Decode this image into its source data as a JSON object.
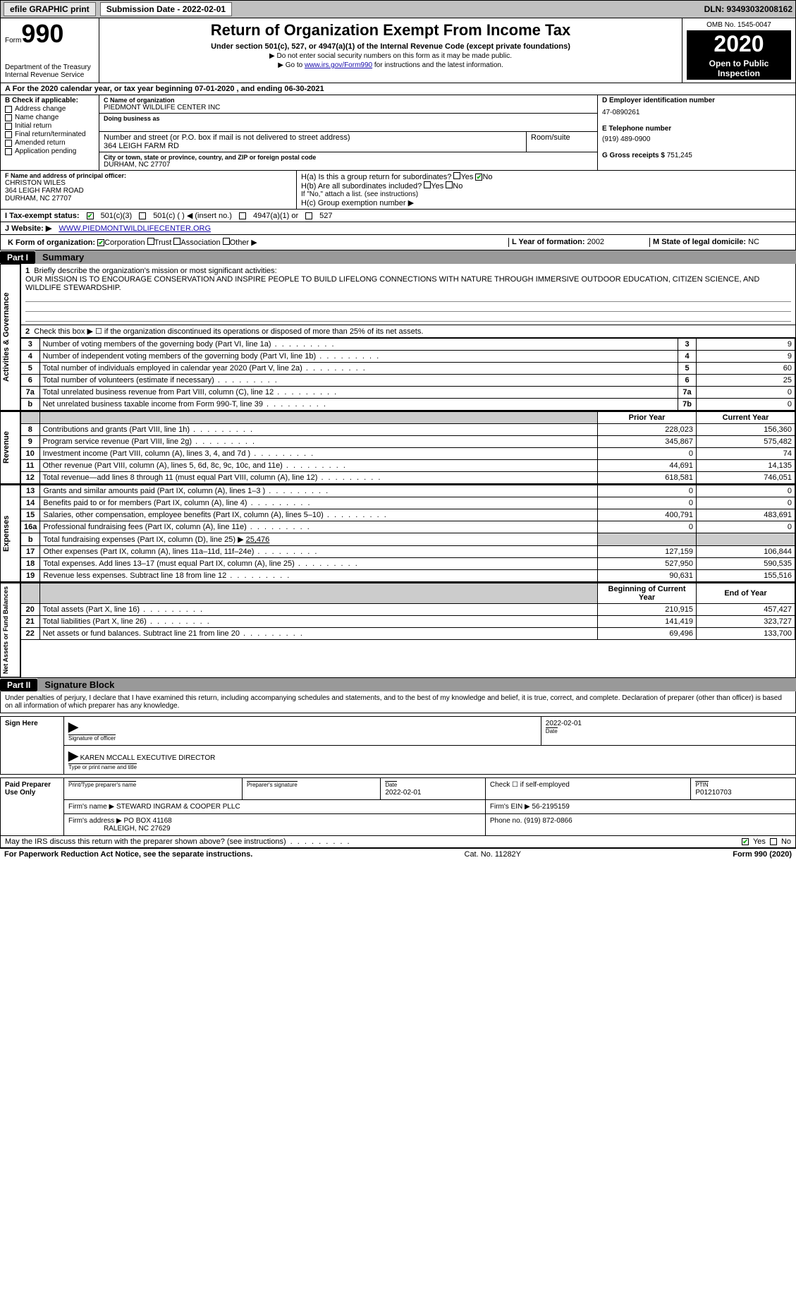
{
  "topbar": {
    "efile": "efile GRAPHIC print",
    "submission_label": "Submission Date - 2022-02-01",
    "dln": "DLN: 93493032008162"
  },
  "form_header": {
    "form_label": "Form",
    "form_number": "990",
    "dept": "Department of the Treasury",
    "irs": "Internal Revenue Service",
    "title": "Return of Organization Exempt From Income Tax",
    "subtitle": "Under section 501(c), 527, or 4947(a)(1) of the Internal Revenue Code (except private foundations)",
    "note1": "▶ Do not enter social security numbers on this form as it may be made public.",
    "note2_pre": "▶ Go to ",
    "note2_link": "www.irs.gov/Form990",
    "note2_post": " for instructions and the latest information.",
    "omb": "OMB No. 1545-0047",
    "year": "2020",
    "open": "Open to Public Inspection"
  },
  "period": "A For the 2020 calendar year, or tax year beginning 07-01-2020   , and ending 06-30-2021",
  "B": {
    "label": "B Check if applicable:",
    "items": [
      "Address change",
      "Name change",
      "Initial return",
      "Final return/terminated",
      "Amended return",
      "Application pending"
    ]
  },
  "C": {
    "name_label": "C Name of organization",
    "name": "PIEDMONT WILDLIFE CENTER INC",
    "dba_label": "Doing business as",
    "addr_label": "Number and street (or P.O. box if mail is not delivered to street address)",
    "addr": "364 LEIGH FARM RD",
    "room_label": "Room/suite",
    "city_label": "City or town, state or province, country, and ZIP or foreign postal code",
    "city": "DURHAM, NC  27707"
  },
  "D": {
    "label": "D Employer identification number",
    "ein": "47-0890261"
  },
  "E": {
    "label": "E Telephone number",
    "phone": "(919) 489-0900"
  },
  "G": {
    "label": "G Gross receipts $",
    "val": "751,245"
  },
  "F": {
    "label": "F Name and address of principal officer:",
    "name": "CHRISTON WILES",
    "addr1": "364 LEIGH FARM ROAD",
    "addr2": "DURHAM, NC  27707"
  },
  "H": {
    "a": "H(a)  Is this a group return for subordinates?",
    "a_yes": "Yes",
    "a_no": "No",
    "b": "H(b)  Are all subordinates included?",
    "b_yes": "Yes",
    "b_no": "No",
    "b_note": "If \"No,\" attach a list. (see instructions)",
    "c": "H(c)  Group exemption number ▶"
  },
  "I": {
    "label": "I   Tax-exempt status:",
    "opts": [
      "501(c)(3)",
      "501(c) (   ) ◀ (insert no.)",
      "4947(a)(1) or",
      "527"
    ]
  },
  "J": {
    "label": "J   Website: ▶",
    "val": "WWW.PIEDMONTWILDLIFECENTER.ORG"
  },
  "K": {
    "label": "K Form of organization:",
    "opts": [
      "Corporation",
      "Trust",
      "Association",
      "Other ▶"
    ]
  },
  "L": {
    "label": "L Year of formation:",
    "val": "2002"
  },
  "M": {
    "label": "M State of legal domicile:",
    "val": "NC"
  },
  "part1": {
    "title": "Summary",
    "tab1": "Activities & Governance",
    "tab2": "Revenue",
    "tab3": "Expenses",
    "tab4": "Net Assets or Fund Balances",
    "l1_label": "Briefly describe the organization's mission or most significant activities:",
    "l1_text": "OUR MISSION IS TO ENCOURAGE CONSERVATION AND INSPIRE PEOPLE TO BUILD LIFELONG CONNECTIONS WITH NATURE THROUGH IMMERSIVE OUTDOOR EDUCATION, CITIZEN SCIENCE, AND WILDLIFE STEWARDSHIP.",
    "l2": "Check this box ▶ ☐ if the organization discontinued its operations or disposed of more than 25% of its net assets.",
    "rows_gov": [
      {
        "n": "3",
        "t": "Number of voting members of the governing body (Part VI, line 1a)",
        "r": "3",
        "v": "9"
      },
      {
        "n": "4",
        "t": "Number of independent voting members of the governing body (Part VI, line 1b)",
        "r": "4",
        "v": "9"
      },
      {
        "n": "5",
        "t": "Total number of individuals employed in calendar year 2020 (Part V, line 2a)",
        "r": "5",
        "v": "60"
      },
      {
        "n": "6",
        "t": "Total number of volunteers (estimate if necessary)",
        "r": "6",
        "v": "25"
      },
      {
        "n": "7a",
        "t": "Total unrelated business revenue from Part VIII, column (C), line 12",
        "r": "7a",
        "v": "0"
      },
      {
        "n": "b",
        "t": "Net unrelated business taxable income from Form 990-T, line 39",
        "r": "7b",
        "v": "0"
      }
    ],
    "col_prior": "Prior Year",
    "col_current": "Current Year",
    "rows_rev": [
      {
        "n": "8",
        "t": "Contributions and grants (Part VIII, line 1h)",
        "p": "228,023",
        "c": "156,360"
      },
      {
        "n": "9",
        "t": "Program service revenue (Part VIII, line 2g)",
        "p": "345,867",
        "c": "575,482"
      },
      {
        "n": "10",
        "t": "Investment income (Part VIII, column (A), lines 3, 4, and 7d )",
        "p": "0",
        "c": "74"
      },
      {
        "n": "11",
        "t": "Other revenue (Part VIII, column (A), lines 5, 6d, 8c, 9c, 10c, and 11e)",
        "p": "44,691",
        "c": "14,135"
      },
      {
        "n": "12",
        "t": "Total revenue—add lines 8 through 11 (must equal Part VIII, column (A), line 12)",
        "p": "618,581",
        "c": "746,051"
      }
    ],
    "rows_exp": [
      {
        "n": "13",
        "t": "Grants and similar amounts paid (Part IX, column (A), lines 1–3 )",
        "p": "0",
        "c": "0"
      },
      {
        "n": "14",
        "t": "Benefits paid to or for members (Part IX, column (A), line 4)",
        "p": "0",
        "c": "0"
      },
      {
        "n": "15",
        "t": "Salaries, other compensation, employee benefits (Part IX, column (A), lines 5–10)",
        "p": "400,791",
        "c": "483,691"
      },
      {
        "n": "16a",
        "t": "Professional fundraising fees (Part IX, column (A), line 11e)",
        "p": "0",
        "c": "0"
      }
    ],
    "row_16b": {
      "n": "b",
      "t": "Total fundraising expenses (Part IX, column (D), line 25) ▶",
      "v": "25,476"
    },
    "rows_exp2": [
      {
        "n": "17",
        "t": "Other expenses (Part IX, column (A), lines 11a–11d, 11f–24e)",
        "p": "127,159",
        "c": "106,844"
      },
      {
        "n": "18",
        "t": "Total expenses. Add lines 13–17 (must equal Part IX, column (A), line 25)",
        "p": "527,950",
        "c": "590,535"
      },
      {
        "n": "19",
        "t": "Revenue less expenses. Subtract line 18 from line 12",
        "p": "90,631",
        "c": "155,516"
      }
    ],
    "col_beg": "Beginning of Current Year",
    "col_end": "End of Year",
    "rows_net": [
      {
        "n": "20",
        "t": "Total assets (Part X, line 16)",
        "p": "210,915",
        "c": "457,427"
      },
      {
        "n": "21",
        "t": "Total liabilities (Part X, line 26)",
        "p": "141,419",
        "c": "323,727"
      },
      {
        "n": "22",
        "t": "Net assets or fund balances. Subtract line 21 from line 20",
        "p": "69,496",
        "c": "133,700"
      }
    ]
  },
  "part2": {
    "title": "Signature Block",
    "perjury": "Under penalties of perjury, I declare that I have examined this return, including accompanying schedules and statements, and to the best of my knowledge and belief, it is true, correct, and complete. Declaration of preparer (other than officer) is based on all information of which preparer has any knowledge.",
    "sign_here": "Sign Here",
    "sig_officer": "Signature of officer",
    "sig_date": "2022-02-01",
    "date_label": "Date",
    "officer_name": "KAREN MCCALL  EXECUTIVE DIRECTOR",
    "type_name": "Type or print name and title",
    "paid": "Paid Preparer Use Only",
    "prep_name_label": "Print/Type preparer's name",
    "prep_sig_label": "Preparer's signature",
    "prep_date": "2022-02-01",
    "prep_date_label": "Date",
    "check_self": "Check ☐ if self-employed",
    "ptin_label": "PTIN",
    "ptin": "P01210703",
    "firm_name_label": "Firm's name    ▶",
    "firm_name": "STEWARD INGRAM & COOPER PLLC",
    "firm_ein_label": "Firm's EIN ▶",
    "firm_ein": "56-2195159",
    "firm_addr_label": "Firm's address ▶",
    "firm_addr1": "PO BOX 41168",
    "firm_addr2": "RALEIGH, NC  27629",
    "firm_phone_label": "Phone no.",
    "firm_phone": "(919) 872-0866",
    "discuss": "May the IRS discuss this return with the preparer shown above? (see instructions)",
    "yes": "Yes",
    "no": "No"
  },
  "footer": {
    "left": "For Paperwork Reduction Act Notice, see the separate instructions.",
    "mid": "Cat. No. 11282Y",
    "right": "Form 990 (2020)"
  }
}
